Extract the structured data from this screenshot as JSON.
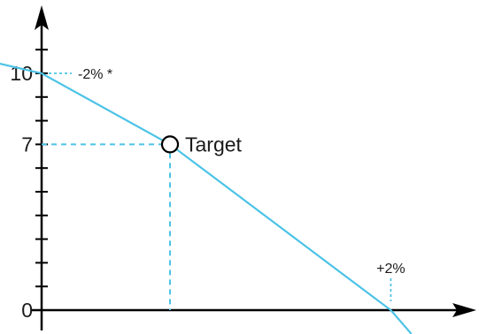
{
  "chart_data": {
    "type": "line",
    "title": "",
    "xlabel": "",
    "ylabel": "",
    "y_ticks": [
      0,
      1,
      2,
      3,
      4,
      5,
      6,
      7,
      8,
      9,
      10,
      11
    ],
    "y_tick_labels": [
      {
        "value": 0,
        "label": "0"
      },
      {
        "value": 7,
        "label": "7"
      },
      {
        "value": 10,
        "label": "10"
      }
    ],
    "ylim": [
      -1,
      13
    ],
    "grid": false,
    "series": [
      {
        "color": "#4cc3e6",
        "points": [
          {
            "x": -1,
            "y": 10.5
          },
          {
            "x": 0,
            "y": 10
          },
          {
            "x": 2.5,
            "y": 7
          },
          {
            "x": 6.8,
            "y": 0
          },
          {
            "x": 7.2,
            "y": -1
          }
        ]
      }
    ],
    "target": {
      "x": 2.5,
      "y": 7,
      "label": "Target"
    },
    "annotations": [
      {
        "text": "-2% *",
        "x": 0,
        "y": 10
      },
      {
        "text": "+2%",
        "x": 6.8,
        "y": 0
      }
    ],
    "colors": {
      "line": "#4cc3e6",
      "axis": "#000000"
    }
  }
}
